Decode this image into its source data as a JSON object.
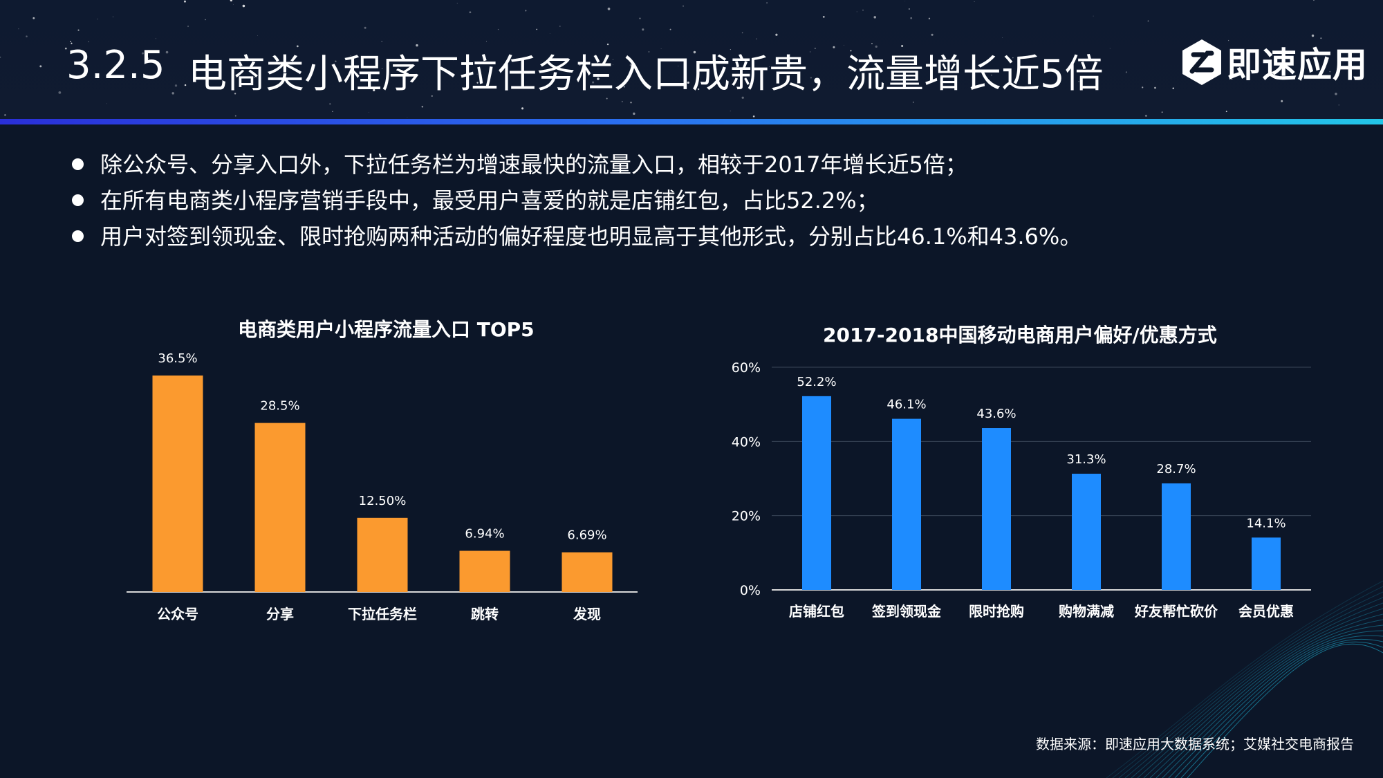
{
  "header": {
    "section_number": "3.2.5",
    "title": "电商类小程序下拉任务栏入口成新贵，流量增长近5倍",
    "logo_text": "即速应用"
  },
  "bullets": [
    "除公众号、分享入口外，下拉任务栏为增速最快的流量入口，相较于2017年增长近5倍；",
    "在所有电商类小程序营销手段中，最受用户喜爱的就是店铺红包，占比52.2%；",
    "用户对签到领现金、限时抢购两种活动的偏好程度也明显高于其他形式，分别占比46.1%和43.6%。"
  ],
  "chart_data": [
    {
      "type": "bar",
      "title": "电商类用户小程序流量入口 TOP5",
      "categories": [
        "公众号",
        "分享",
        "下拉任务栏",
        "跳转",
        "发现"
      ],
      "values": [
        36.5,
        28.5,
        12.5,
        6.94,
        6.69
      ],
      "data_labels": [
        "36.5%",
        "28.5%",
        "12.50%",
        "6.94%",
        "6.69%"
      ],
      "ylim": [
        0,
        36.5
      ],
      "color": "#fb9a2f",
      "grid": false
    },
    {
      "type": "bar",
      "title": "2017-2018中国移动电商用户偏好/优惠方式",
      "categories": [
        "店铺红包",
        "签到领现金",
        "限时抢购",
        "购物满减",
        "好友帮忙砍价",
        "会员优惠"
      ],
      "values": [
        52.2,
        46.1,
        43.6,
        31.3,
        28.7,
        14.1
      ],
      "data_labels": [
        "52.2%",
        "46.1%",
        "43.6%",
        "31.3%",
        "28.7%",
        "14.1%"
      ],
      "ylim": [
        0,
        60
      ],
      "yticks": [
        0,
        20,
        40,
        60
      ],
      "ytick_labels": [
        "0%",
        "20%",
        "40%",
        "60%"
      ],
      "color": "#1e8cff",
      "grid": true
    }
  ],
  "source": "数据来源：即速应用大数据系统；艾媒社交电商报告"
}
